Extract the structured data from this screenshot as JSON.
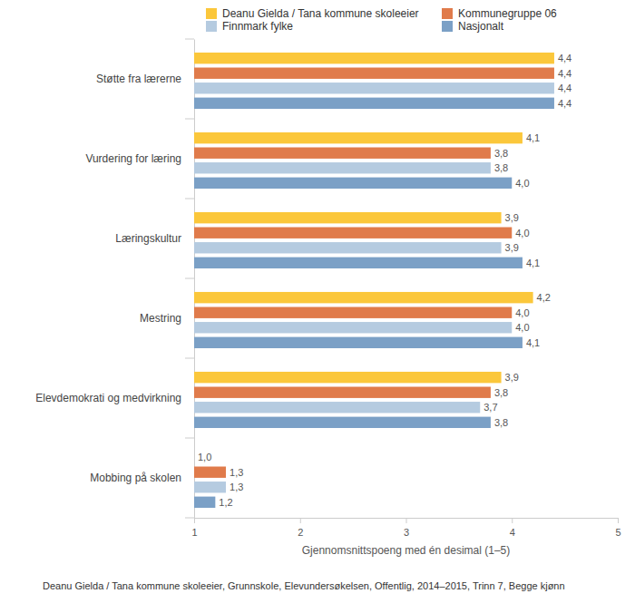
{
  "chart_data": {
    "type": "bar",
    "orientation": "horizontal",
    "data_labels": true,
    "grid": false,
    "legend": "top",
    "xlabel": "Gjennomsnittspoeng med én desimal (1–5)",
    "annotations": [
      "Deanu Gielda / Tana kommune skoleeier, Grunnskole, Elevundersøkelsen, Offentlig, 2014–2015, Trinn 7, Begge kjønn"
    ],
    "categories": [
      "Støtte fra lærerne",
      "Vurdering for læring",
      "Læringskultur",
      "Mestring",
      "Elevdemokrati og medvirkning",
      "Mobbing på skolen"
    ],
    "xlim": [
      1,
      5
    ],
    "xticks": [
      1,
      2,
      3,
      4,
      5
    ],
    "series": [
      {
        "name": "Deanu Gielda / Tana kommune skoleeier",
        "color": "#fbc73b",
        "values": [
          4.4,
          4.1,
          3.9,
          4.2,
          3.9,
          1.0
        ],
        "value_labels": [
          "4,4",
          "4,1",
          "3,9",
          "4,2",
          "3,9",
          "1,0"
        ]
      },
      {
        "name": "Kommunegruppe 06",
        "color": "#e07b4b",
        "values": [
          4.4,
          3.8,
          4.0,
          4.0,
          3.8,
          1.3
        ],
        "value_labels": [
          "4,4",
          "3,8",
          "4,0",
          "4,0",
          "3,8",
          "1,3"
        ]
      },
      {
        "name": "Finnmark fylke",
        "color": "#b5cbe0",
        "values": [
          4.4,
          3.8,
          3.9,
          4.0,
          3.7,
          1.3
        ],
        "value_labels": [
          "4,4",
          "3,8",
          "3,9",
          "4,0",
          "3,7",
          "1,3"
        ]
      },
      {
        "name": "Nasjonalt",
        "color": "#7ba0c6",
        "values": [
          4.4,
          4.0,
          4.1,
          4.1,
          3.8,
          1.2
        ],
        "value_labels": [
          "4,4",
          "4,0",
          "4,1",
          "4,1",
          "3,8",
          "1,2"
        ]
      }
    ]
  }
}
